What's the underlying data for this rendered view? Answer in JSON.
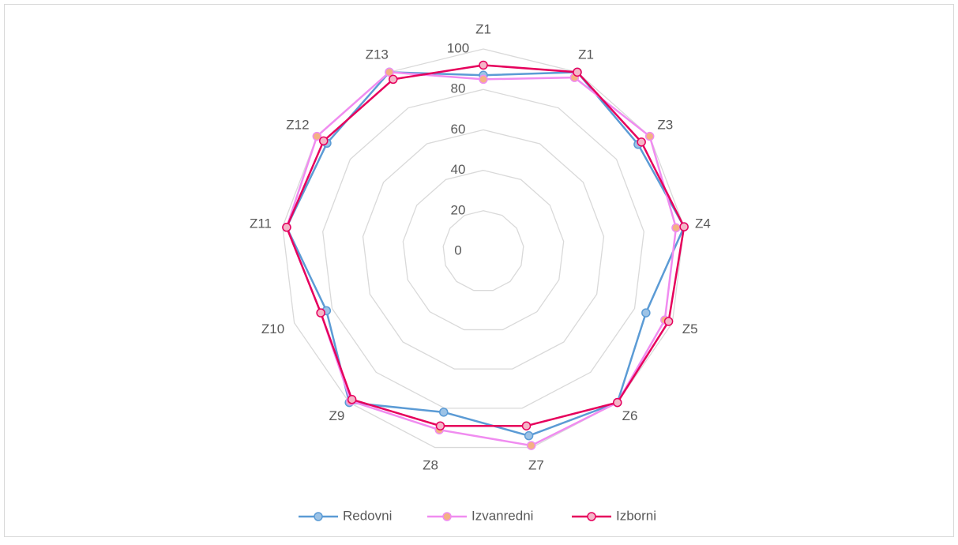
{
  "chart_data": {
    "type": "radar",
    "categories": [
      "Z1",
      "Z1",
      "Z3",
      "Z4",
      "Z5",
      "Z6",
      "Z7",
      "Z8",
      "Z9",
      "Z10",
      "Z11",
      "Z12",
      "Z13"
    ],
    "series": [
      {
        "name": "Redovni",
        "color": "#5b9bd5",
        "marker": "#9dc3e6",
        "values": [
          87,
          100,
          93,
          100,
          86,
          100,
          94,
          82,
          100,
          83,
          98,
          94,
          100
        ]
      },
      {
        "name": "Izvanredni",
        "color": "#f08cf0",
        "marker": "#f4b183",
        "values": [
          85,
          97,
          100,
          96,
          96,
          100,
          99,
          91,
          99,
          86,
          98,
          100,
          100
        ]
      },
      {
        "name": "Izborni",
        "color": "#e6005c",
        "marker": "#f4b6c8",
        "values": [
          92,
          100,
          95,
          100,
          98,
          100,
          89,
          89,
          98,
          86,
          98,
          96,
          96
        ]
      }
    ],
    "ylim": [
      0,
      100
    ],
    "yticks": [
      0,
      20,
      40,
      60,
      80,
      100
    ],
    "grid": true,
    "legend": "bottom"
  }
}
